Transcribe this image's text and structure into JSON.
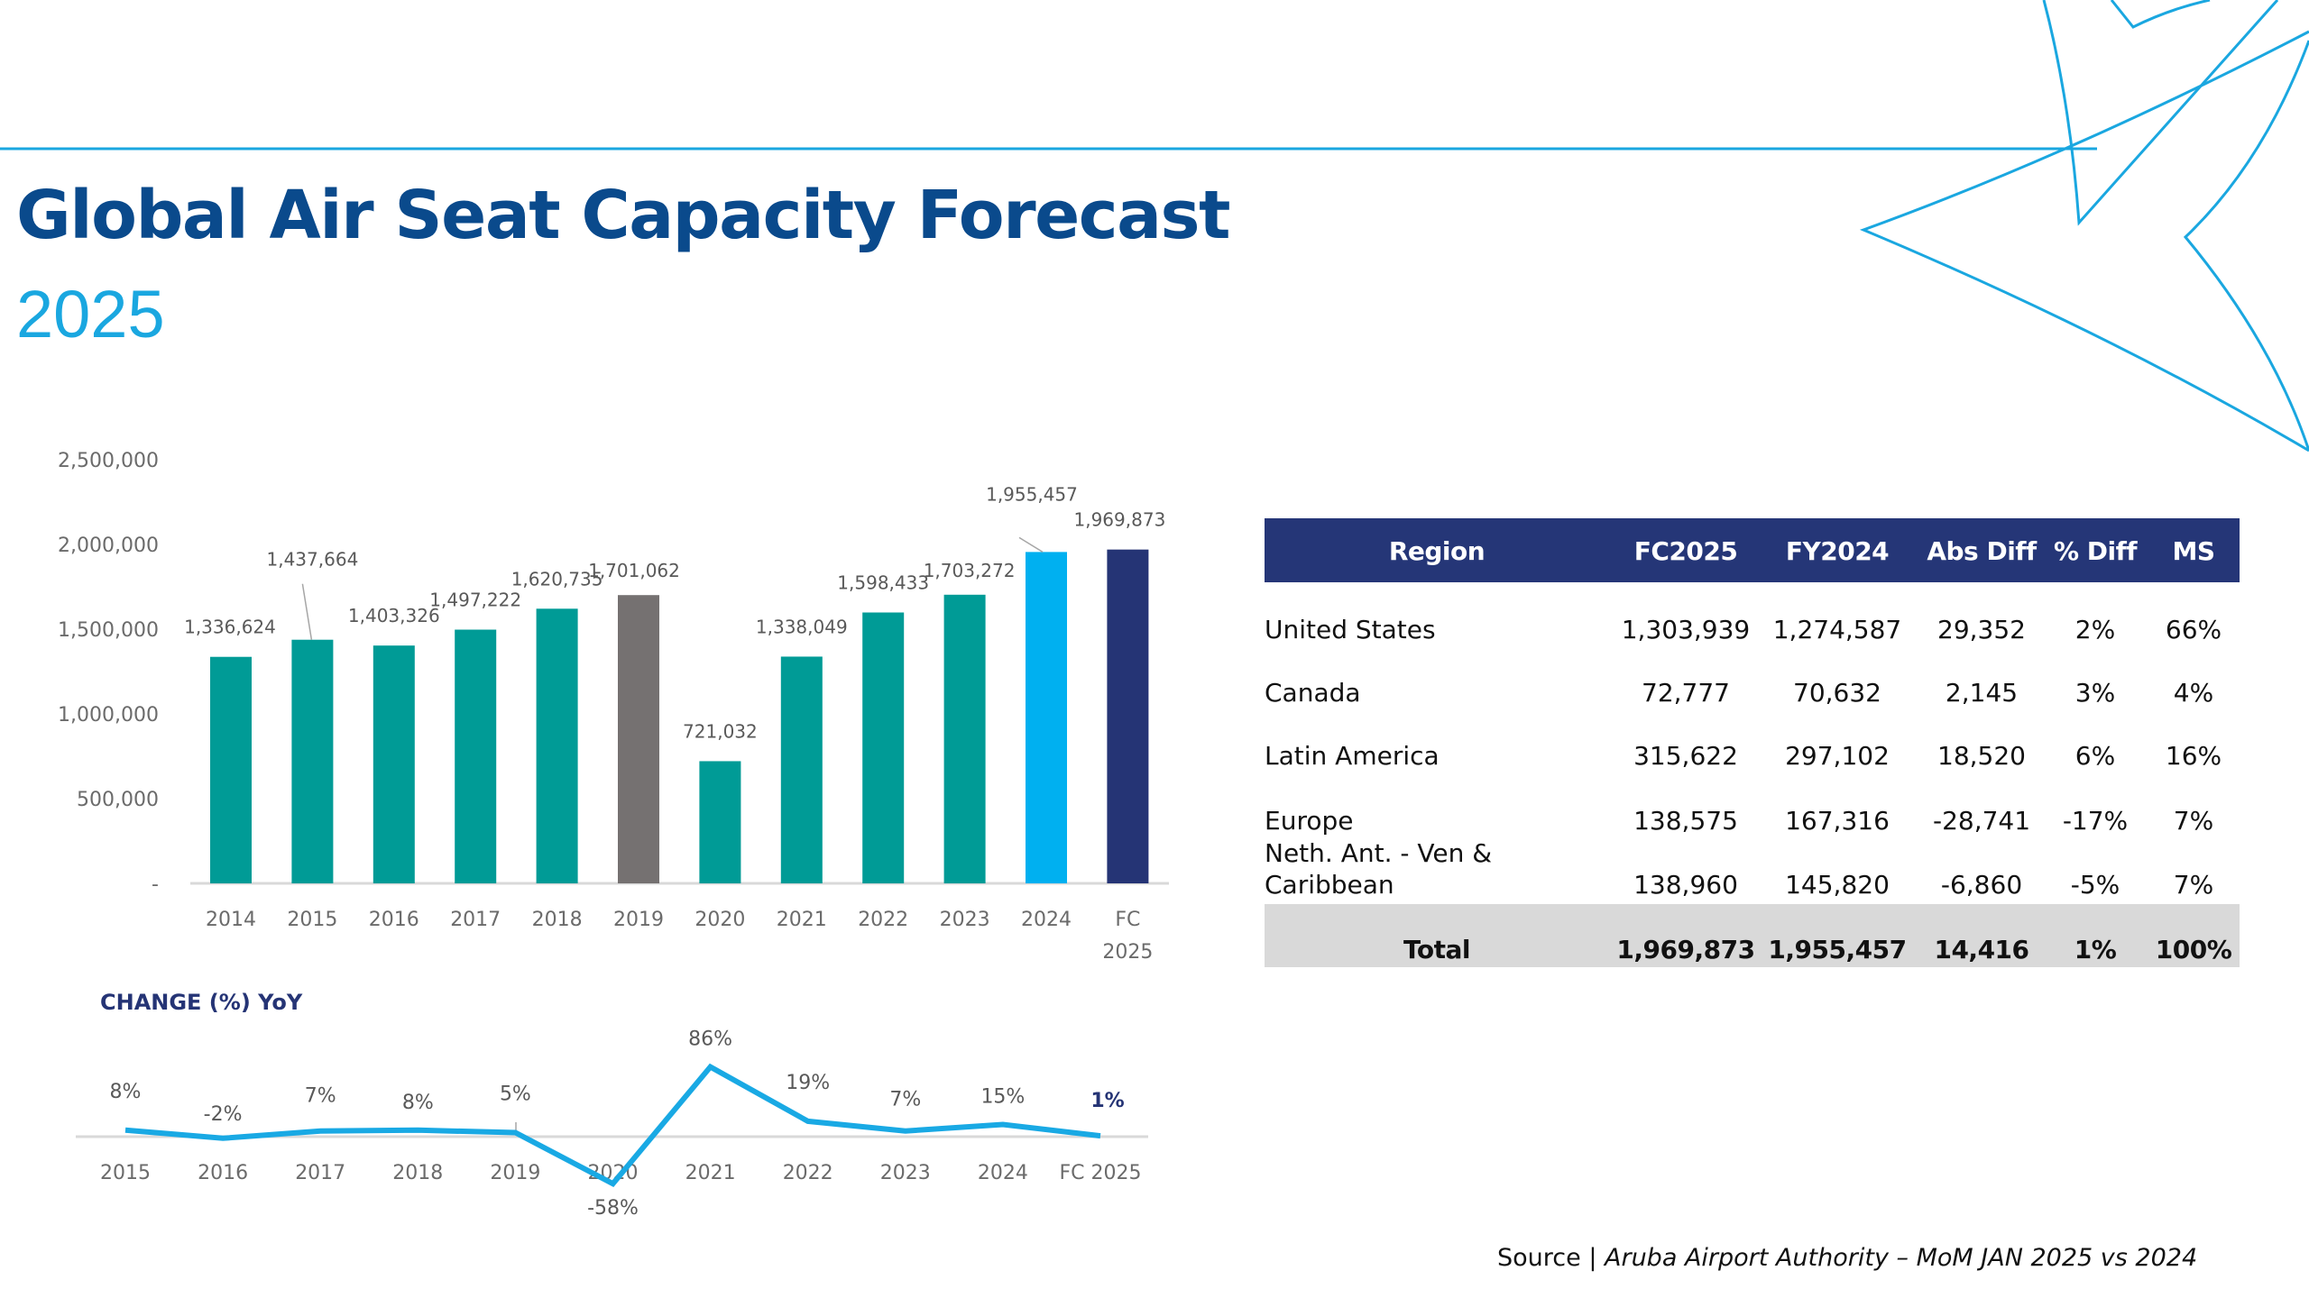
{
  "header": {
    "title": "Global Air Seat Capacity Forecast",
    "subtitle": "2025"
  },
  "colors": {
    "title": "#0a4a8c",
    "accent_light_blue": "#1aa7e0",
    "bar_teal": "#009b96",
    "bar_gray": "#757171",
    "bar_2024": "#00b0f0",
    "bar_fc2025": "#253475",
    "table_header": "#253677",
    "table_total": "#d9d9d9",
    "yoy_line": "#19a9e4"
  },
  "chart_data": [
    {
      "type": "bar",
      "title": "",
      "xlabel": "",
      "ylabel": "",
      "categories": [
        "2014",
        "2015",
        "2016",
        "2017",
        "2018",
        "2019",
        "2020",
        "2021",
        "2022",
        "2023",
        "2024",
        "FC 2025"
      ],
      "category_lines": [
        [
          "2014"
        ],
        [
          "2015"
        ],
        [
          "2016"
        ],
        [
          "2017"
        ],
        [
          "2018"
        ],
        [
          "2019"
        ],
        [
          "2020"
        ],
        [
          "2021"
        ],
        [
          "2022"
        ],
        [
          "2023"
        ],
        [
          "2024"
        ],
        [
          "FC",
          "2025"
        ]
      ],
      "values": [
        1336624,
        1437664,
        1403326,
        1497222,
        1620735,
        1701062,
        721032,
        1338049,
        1598433,
        1703272,
        1955457,
        1969873
      ],
      "data_labels": [
        "1,336,624",
        "1,437,664",
        "1,403,326",
        "1,497,222",
        "1,620,735",
        "1,701,062",
        "721,032",
        "1,338,049",
        "1,598,433",
        "1,703,272",
        "1,955,457",
        "1,969,873"
      ],
      "bar_colors": [
        "teal",
        "teal",
        "teal",
        "teal",
        "teal",
        "gray",
        "teal",
        "teal",
        "teal",
        "teal",
        "light-blue",
        "navy"
      ],
      "ylim": [
        0,
        2500000
      ],
      "yticks": [
        0,
        500000,
        1000000,
        1500000,
        2000000,
        2500000
      ],
      "ytick_labels": [
        "-",
        "500,000",
        "1,000,000",
        "1,500,000",
        "2,000,000",
        "2,500,000"
      ],
      "grid": false,
      "legend": "none"
    },
    {
      "type": "line",
      "title": "CHANGE (%) YoY",
      "categories": [
        "2015",
        "2016",
        "2017",
        "2018",
        "2019",
        "2020",
        "2021",
        "2022",
        "2023",
        "2024",
        "FC 2025"
      ],
      "values": [
        8,
        -2,
        7,
        8,
        5,
        -58,
        86,
        19,
        7,
        15,
        1
      ],
      "data_labels": [
        "8%",
        "-2%",
        "7%",
        "8%",
        "5%",
        "-58%",
        "86%",
        "19%",
        "7%",
        "15%",
        "1%"
      ],
      "unit": "%",
      "grid": false,
      "legend": "none"
    }
  ],
  "table": {
    "columns": [
      "Region",
      "FC2025",
      "FY2024",
      "Abs Diff",
      "% Diff",
      "MS"
    ],
    "rows": [
      {
        "region": [
          "United States"
        ],
        "fc2025": "1,303,939",
        "fy2024": "1,274,587",
        "abs_diff": "29,352",
        "pct_diff": "2%",
        "ms": "66%"
      },
      {
        "region": [
          "Canada"
        ],
        "fc2025": "72,777",
        "fy2024": "70,632",
        "abs_diff": "2,145",
        "pct_diff": "3%",
        "ms": "4%"
      },
      {
        "region": [
          "Latin America"
        ],
        "fc2025": "315,622",
        "fy2024": "297,102",
        "abs_diff": "18,520",
        "pct_diff": "6%",
        "ms": "16%"
      },
      {
        "region": [
          "Europe"
        ],
        "fc2025": "138,575",
        "fy2024": "167,316",
        "abs_diff": "-28,741",
        "pct_diff": "-17%",
        "ms": "7%"
      },
      {
        "region": [
          "Neth. Ant. - Ven &",
          "Caribbean"
        ],
        "fc2025": "138,960",
        "fy2024": "145,820",
        "abs_diff": "-6,860",
        "pct_diff": "-5%",
        "ms": "7%"
      }
    ],
    "total": {
      "region": "Total",
      "fc2025": "1,969,873",
      "fy2024": "1,955,457",
      "abs_diff": "14,416",
      "pct_diff": "1%",
      "ms": "100%"
    }
  },
  "footer": {
    "source_prefix": "Source | ",
    "source_text": "Aruba Airport Authority – MoM JAN 2025 vs 2024"
  }
}
